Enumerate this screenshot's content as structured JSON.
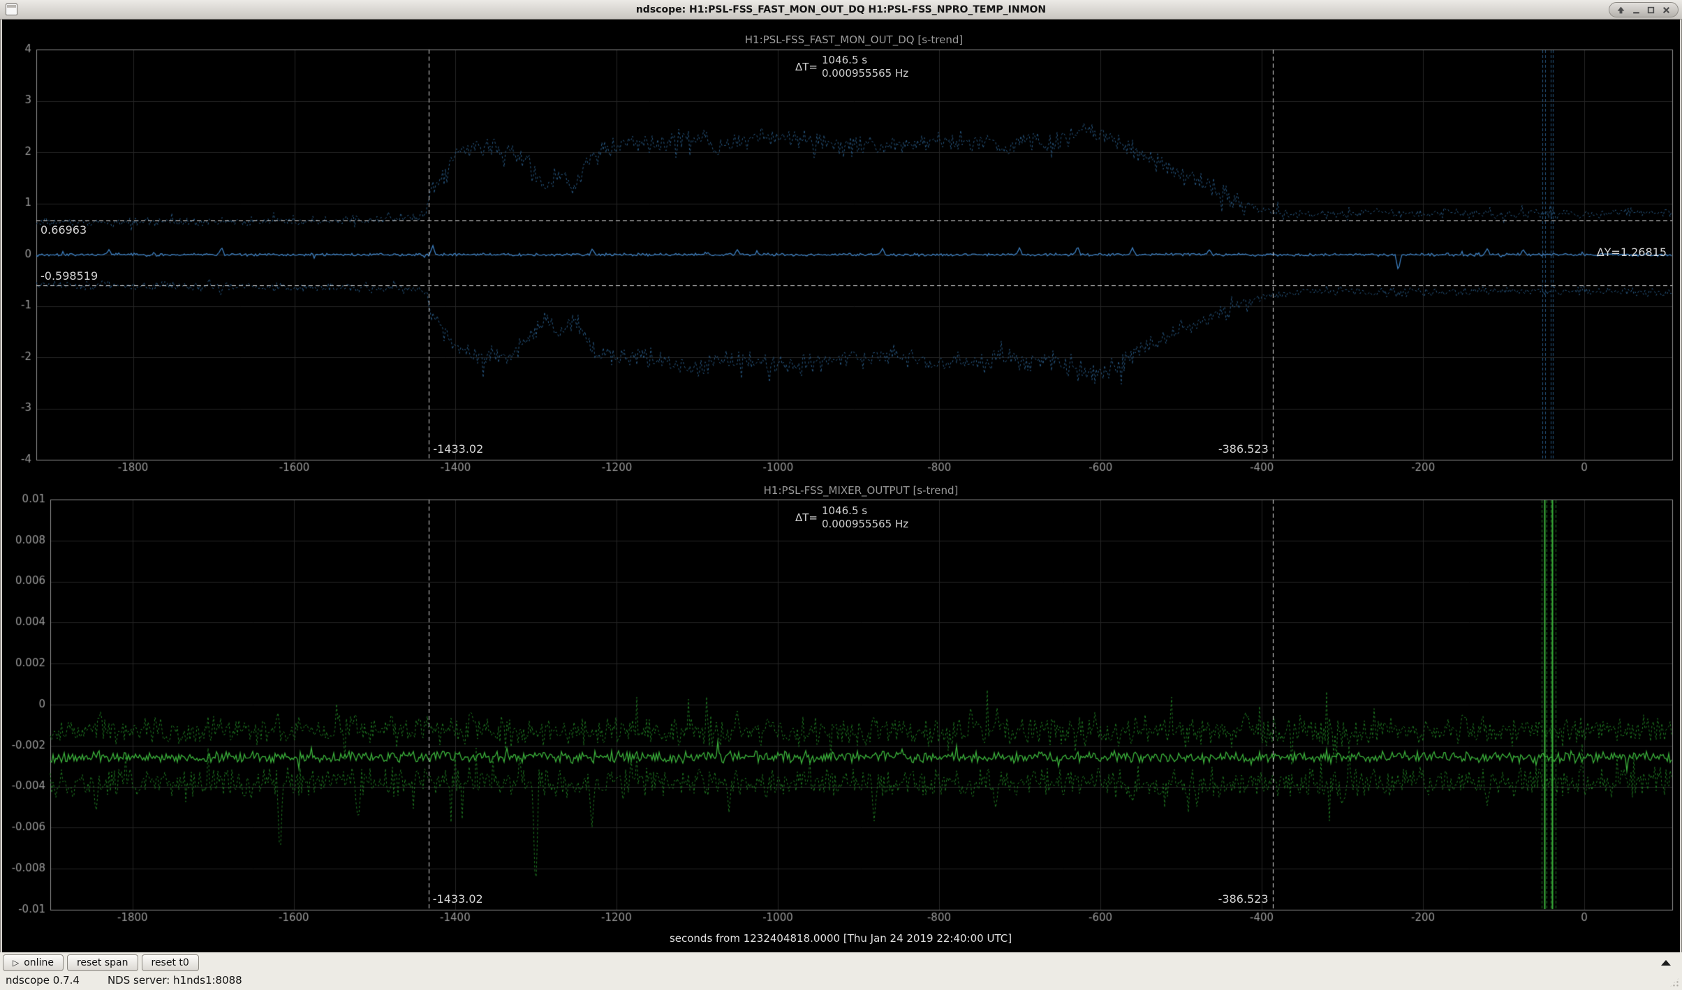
{
  "window": {
    "title": "ndscope: H1:PSL-FSS_FAST_MON_OUT_DQ H1:PSL-FSS_NPRO_TEMP_INMON"
  },
  "x_axis_label": "seconds from 1232404818.0000 [Thu Jan 24 2019 22:40:00 UTC]",
  "toolbar": {
    "online_icon": "▷",
    "online_label": "online",
    "reset_span_label": "reset span",
    "reset_t0_label": "reset t0"
  },
  "statusbar": {
    "version": "ndscope 0.7.4",
    "nds_server": "NDS server: h1nds1:8088"
  },
  "chart_data": [
    {
      "type": "line",
      "title": "H1:PSL-FSS_FAST_MON_OUT_DQ [s-trend]",
      "xlim": [
        -1920,
        109
      ],
      "ylim": [
        -4,
        4
      ],
      "x_ticks": [
        -1800,
        -1600,
        -1400,
        -1200,
        -1000,
        -800,
        -600,
        -400,
        -200,
        0
      ],
      "y_ticks": [
        4,
        3,
        2,
        1,
        0,
        -1,
        -2,
        -3,
        -4
      ],
      "grid": true,
      "colors": {
        "solid": "#3d7fc0",
        "dashed": "#27567f"
      },
      "series": [
        {
          "name": "max",
          "style": "dashed",
          "noise": 0.07,
          "noise_hi": 0.16,
          "envelope": [
            [
              -1920,
              0.62
            ],
            [
              -1800,
              0.63
            ],
            [
              -1700,
              0.64
            ],
            [
              -1600,
              0.66
            ],
            [
              -1520,
              0.69
            ],
            [
              -1450,
              0.72
            ],
            [
              -1435,
              0.78
            ],
            [
              -1430,
              1.3
            ],
            [
              -1415,
              1.5
            ],
            [
              -1395,
              2.0
            ],
            [
              -1370,
              2.1
            ],
            [
              -1340,
              2.05
            ],
            [
              -1310,
              1.8
            ],
            [
              -1290,
              1.35
            ],
            [
              -1270,
              1.55
            ],
            [
              -1252,
              1.35
            ],
            [
              -1235,
              1.8
            ],
            [
              -1215,
              2.05
            ],
            [
              -1190,
              2.15
            ],
            [
              -1160,
              2.1
            ],
            [
              -1130,
              2.25
            ],
            [
              -1100,
              2.3
            ],
            [
              -1075,
              2.1
            ],
            [
              -1045,
              2.2
            ],
            [
              -1015,
              2.25
            ],
            [
              -985,
              2.3
            ],
            [
              -955,
              2.2
            ],
            [
              -925,
              2.1
            ],
            [
              -895,
              2.15
            ],
            [
              -865,
              2.05
            ],
            [
              -835,
              2.15
            ],
            [
              -805,
              2.25
            ],
            [
              -775,
              2.15
            ],
            [
              -745,
              2.2
            ],
            [
              -715,
              2.05
            ],
            [
              -690,
              2.25
            ],
            [
              -660,
              2.15
            ],
            [
              -635,
              2.3
            ],
            [
              -612,
              2.45
            ],
            [
              -590,
              2.3
            ],
            [
              -570,
              2.15
            ],
            [
              -550,
              1.95
            ],
            [
              -530,
              1.8
            ],
            [
              -510,
              1.65
            ],
            [
              -490,
              1.5
            ],
            [
              -470,
              1.35
            ],
            [
              -450,
              1.2
            ],
            [
              -430,
              1.05
            ],
            [
              -410,
              0.95
            ],
            [
              -392,
              0.85
            ],
            [
              -360,
              0.8
            ],
            [
              -310,
              0.78
            ],
            [
              -255,
              0.83
            ],
            [
              -205,
              0.8
            ],
            [
              -155,
              0.82
            ],
            [
              -105,
              0.78
            ],
            [
              -55,
              0.8
            ],
            [
              -5,
              0.79
            ],
            [
              109,
              0.84
            ]
          ],
          "spikes": []
        },
        {
          "name": "mean",
          "style": "solid",
          "noise": 0.022,
          "noise_hi": 0.022,
          "envelope": [
            [
              -1920,
              0
            ],
            [
              109,
              0
            ]
          ],
          "spikes": [
            [
              -1830,
              0.1
            ],
            [
              -1690,
              0.14
            ],
            [
              -1428,
              0.18
            ],
            [
              -1230,
              0.12
            ],
            [
              -1050,
              0.1
            ],
            [
              -870,
              0.12
            ],
            [
              -700,
              0.14
            ],
            [
              -628,
              0.16
            ],
            [
              -560,
              0.14
            ],
            [
              -465,
              0.1
            ],
            [
              -230,
              -0.32
            ],
            [
              -120,
              0.12
            ],
            [
              -75,
              0.1
            ]
          ]
        },
        {
          "name": "min",
          "style": "dashed",
          "noise": 0.07,
          "noise_hi": 0.16,
          "envelope": [
            [
              -1920,
              -0.6
            ],
            [
              -1800,
              -0.6
            ],
            [
              -1700,
              -0.61
            ],
            [
              -1600,
              -0.62
            ],
            [
              -1520,
              -0.65
            ],
            [
              -1450,
              -0.68
            ],
            [
              -1435,
              -0.73
            ],
            [
              -1430,
              -1.25
            ],
            [
              -1415,
              -1.45
            ],
            [
              -1395,
              -1.9
            ],
            [
              -1370,
              -2.0
            ],
            [
              -1340,
              -1.95
            ],
            [
              -1310,
              -1.7
            ],
            [
              -1290,
              -1.3
            ],
            [
              -1270,
              -1.5
            ],
            [
              -1252,
              -1.3
            ],
            [
              -1235,
              -1.75
            ],
            [
              -1215,
              -1.95
            ],
            [
              -1190,
              -2.05
            ],
            [
              -1160,
              -2.0
            ],
            [
              -1130,
              -2.15
            ],
            [
              -1100,
              -2.2
            ],
            [
              -1075,
              -2.0
            ],
            [
              -1045,
              -2.1
            ],
            [
              -1015,
              -2.15
            ],
            [
              -985,
              -2.2
            ],
            [
              -955,
              -2.1
            ],
            [
              -925,
              -2.0
            ],
            [
              -895,
              -2.05
            ],
            [
              -865,
              -1.95
            ],
            [
              -835,
              -2.05
            ],
            [
              -805,
              -2.15
            ],
            [
              -775,
              -2.05
            ],
            [
              -745,
              -2.1
            ],
            [
              -715,
              -1.95
            ],
            [
              -690,
              -2.15
            ],
            [
              -660,
              -2.05
            ],
            [
              -635,
              -2.2
            ],
            [
              -612,
              -2.35
            ],
            [
              -590,
              -2.2
            ],
            [
              -570,
              -2.05
            ],
            [
              -550,
              -1.85
            ],
            [
              -530,
              -1.7
            ],
            [
              -510,
              -1.55
            ],
            [
              -490,
              -1.4
            ],
            [
              -470,
              -1.25
            ],
            [
              -450,
              -1.1
            ],
            [
              -430,
              -0.98
            ],
            [
              -410,
              -0.88
            ],
            [
              -392,
              -0.8
            ],
            [
              -360,
              -0.73
            ],
            [
              -310,
              -0.7
            ],
            [
              -255,
              -0.74
            ],
            [
              -205,
              -0.72
            ],
            [
              -155,
              -0.73
            ],
            [
              -105,
              -0.7
            ],
            [
              -55,
              -0.72
            ],
            [
              -5,
              -0.71
            ],
            [
              109,
              -0.75
            ]
          ],
          "spikes": []
        }
      ],
      "glitches": [
        {
          "t": -52,
          "style": "dashed"
        },
        {
          "t": -48.5,
          "style": "dashed"
        },
        {
          "t": -41.5,
          "style": "dashed"
        },
        {
          "t": -39,
          "style": "dashed"
        }
      ],
      "cursors": {
        "t": [
          -1433.02,
          -386.523
        ],
        "t_labels": [
          "-1433.02",
          "-386.523"
        ],
        "y": [
          0.66963,
          -0.598519
        ],
        "y_labels": [
          "0.66963",
          "-0.598519"
        ],
        "dy_label": "ΔY=1.26815",
        "dt": {
          "prefix": "ΔT=",
          "line1": "1046.5 s",
          "line2": "0.000955565 Hz"
        }
      }
    },
    {
      "type": "line",
      "title": "H1:PSL-FSS_MIXER_OUTPUT [s-trend]",
      "xlim": [
        -1902,
        109
      ],
      "ylim": [
        -0.01,
        0.01
      ],
      "x_ticks": [
        -1800,
        -1600,
        -1400,
        -1200,
        -1000,
        -800,
        -600,
        -400,
        -200,
        0
      ],
      "y_ticks": [
        0.01,
        0.008,
        0.006,
        0.004,
        0.002,
        0,
        -0.002,
        -0.004,
        -0.006,
        -0.008,
        -0.01
      ],
      "grid": true,
      "colors": {
        "solid": "#3cb43c",
        "dashed": "#1f7a22"
      },
      "series": [
        {
          "name": "max",
          "style": "dashed",
          "noise": 0.00055,
          "noise_hi": 0.00055,
          "envelope": [
            [
              -1902,
              -0.0013
            ],
            [
              109,
              -0.0013
            ]
          ],
          "spikes": [
            [
              -1840,
              -0.0002
            ],
            [
              -1620,
              -0.0003
            ],
            [
              -1380,
              -0.0002
            ],
            [
              -1050,
              -0.00025
            ],
            [
              -760,
              -0.0001
            ],
            [
              -420,
              -0.0003
            ],
            [
              -150,
              -0.0002
            ]
          ]
        },
        {
          "name": "mean",
          "style": "solid",
          "noise": 0.00022,
          "noise_hi": 0.00022,
          "envelope": [
            [
              -1902,
              -0.00255
            ],
            [
              109,
              -0.00255
            ]
          ],
          "spikes": []
        },
        {
          "name": "min",
          "style": "dashed",
          "noise": 0.00055,
          "noise_hi": 0.00055,
          "envelope": [
            [
              -1902,
              -0.0038
            ],
            [
              109,
              -0.0038
            ]
          ],
          "spikes": [
            [
              -1845,
              -0.0052
            ],
            [
              -1617,
              -0.0075
            ],
            [
              -1520,
              -0.0058
            ],
            [
              -1300,
              -0.0095
            ],
            [
              -1230,
              -0.006
            ],
            [
              -1060,
              -0.0053
            ],
            [
              -880,
              -0.0057
            ],
            [
              -730,
              -0.0052
            ],
            [
              -560,
              -0.0048
            ],
            [
              -480,
              -0.005
            ],
            [
              -300,
              -0.0049
            ],
            [
              -120,
              -0.005
            ]
          ]
        }
      ],
      "glitches": [
        {
          "t": -53,
          "style": "dashed"
        },
        {
          "t": -49.5,
          "style": "solid"
        },
        {
          "t": -47,
          "style": "dashed"
        },
        {
          "t": -42,
          "style": "dashed"
        },
        {
          "t": -40,
          "style": "solid"
        },
        {
          "t": -36,
          "style": "dashed"
        }
      ],
      "cursors": {
        "t": [
          -1433.02,
          -386.523
        ],
        "t_labels": [
          "-1433.02",
          "-386.523"
        ],
        "y": [],
        "y_labels": [],
        "dy_label": "",
        "dt": {
          "prefix": "ΔT=",
          "line1": "1046.5 s",
          "line2": "0.000955565 Hz"
        }
      }
    }
  ]
}
